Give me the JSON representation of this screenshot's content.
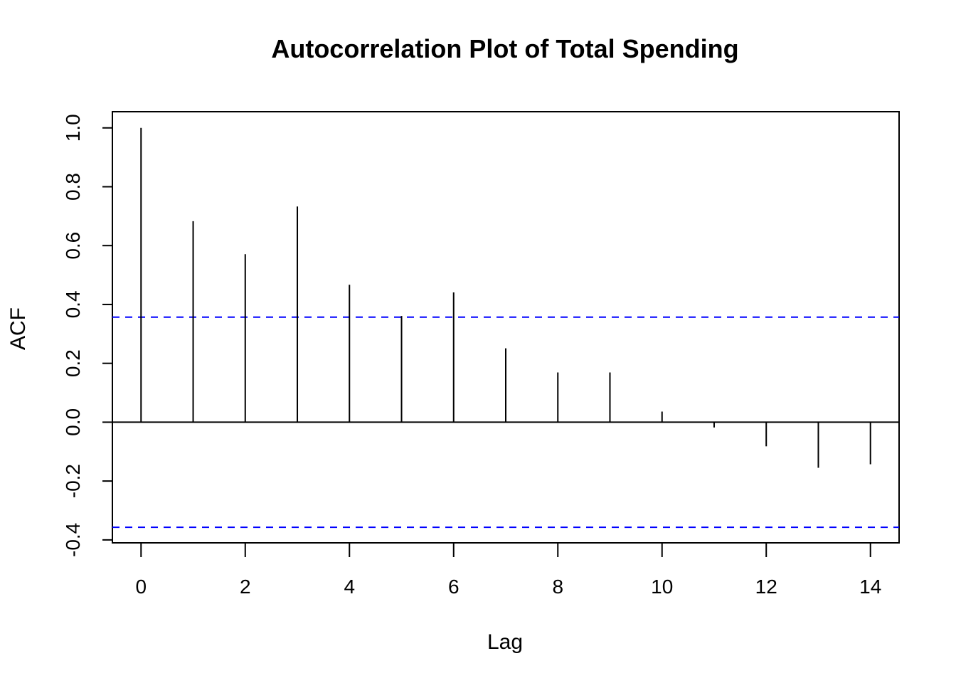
{
  "chart_data": {
    "type": "bar",
    "title": "Autocorrelation Plot of Total Spending",
    "xlabel": "Lag",
    "ylabel": "ACF",
    "x": [
      0,
      1,
      2,
      3,
      4,
      5,
      6,
      7,
      8,
      9,
      10,
      11,
      12,
      13,
      14
    ],
    "values": [
      1.0,
      0.683,
      0.571,
      0.733,
      0.467,
      0.361,
      0.441,
      0.251,
      0.169,
      0.169,
      0.036,
      -0.018,
      -0.082,
      -0.155,
      -0.143
    ],
    "xlim": [
      -0.55,
      14.55
    ],
    "ylim": [
      -0.41,
      1.055
    ],
    "x_ticks": [
      "0",
      "2",
      "4",
      "6",
      "8",
      "10",
      "12",
      "14"
    ],
    "y_ticks": [
      "-0.4",
      "-0.2",
      "0.0",
      "0.2",
      "0.4",
      "0.6",
      "0.8",
      "1.0"
    ],
    "confidence_band": [
      0.357,
      -0.357
    ],
    "colors": {
      "lines": "#000000",
      "confidence_band": "#0000ff"
    }
  }
}
